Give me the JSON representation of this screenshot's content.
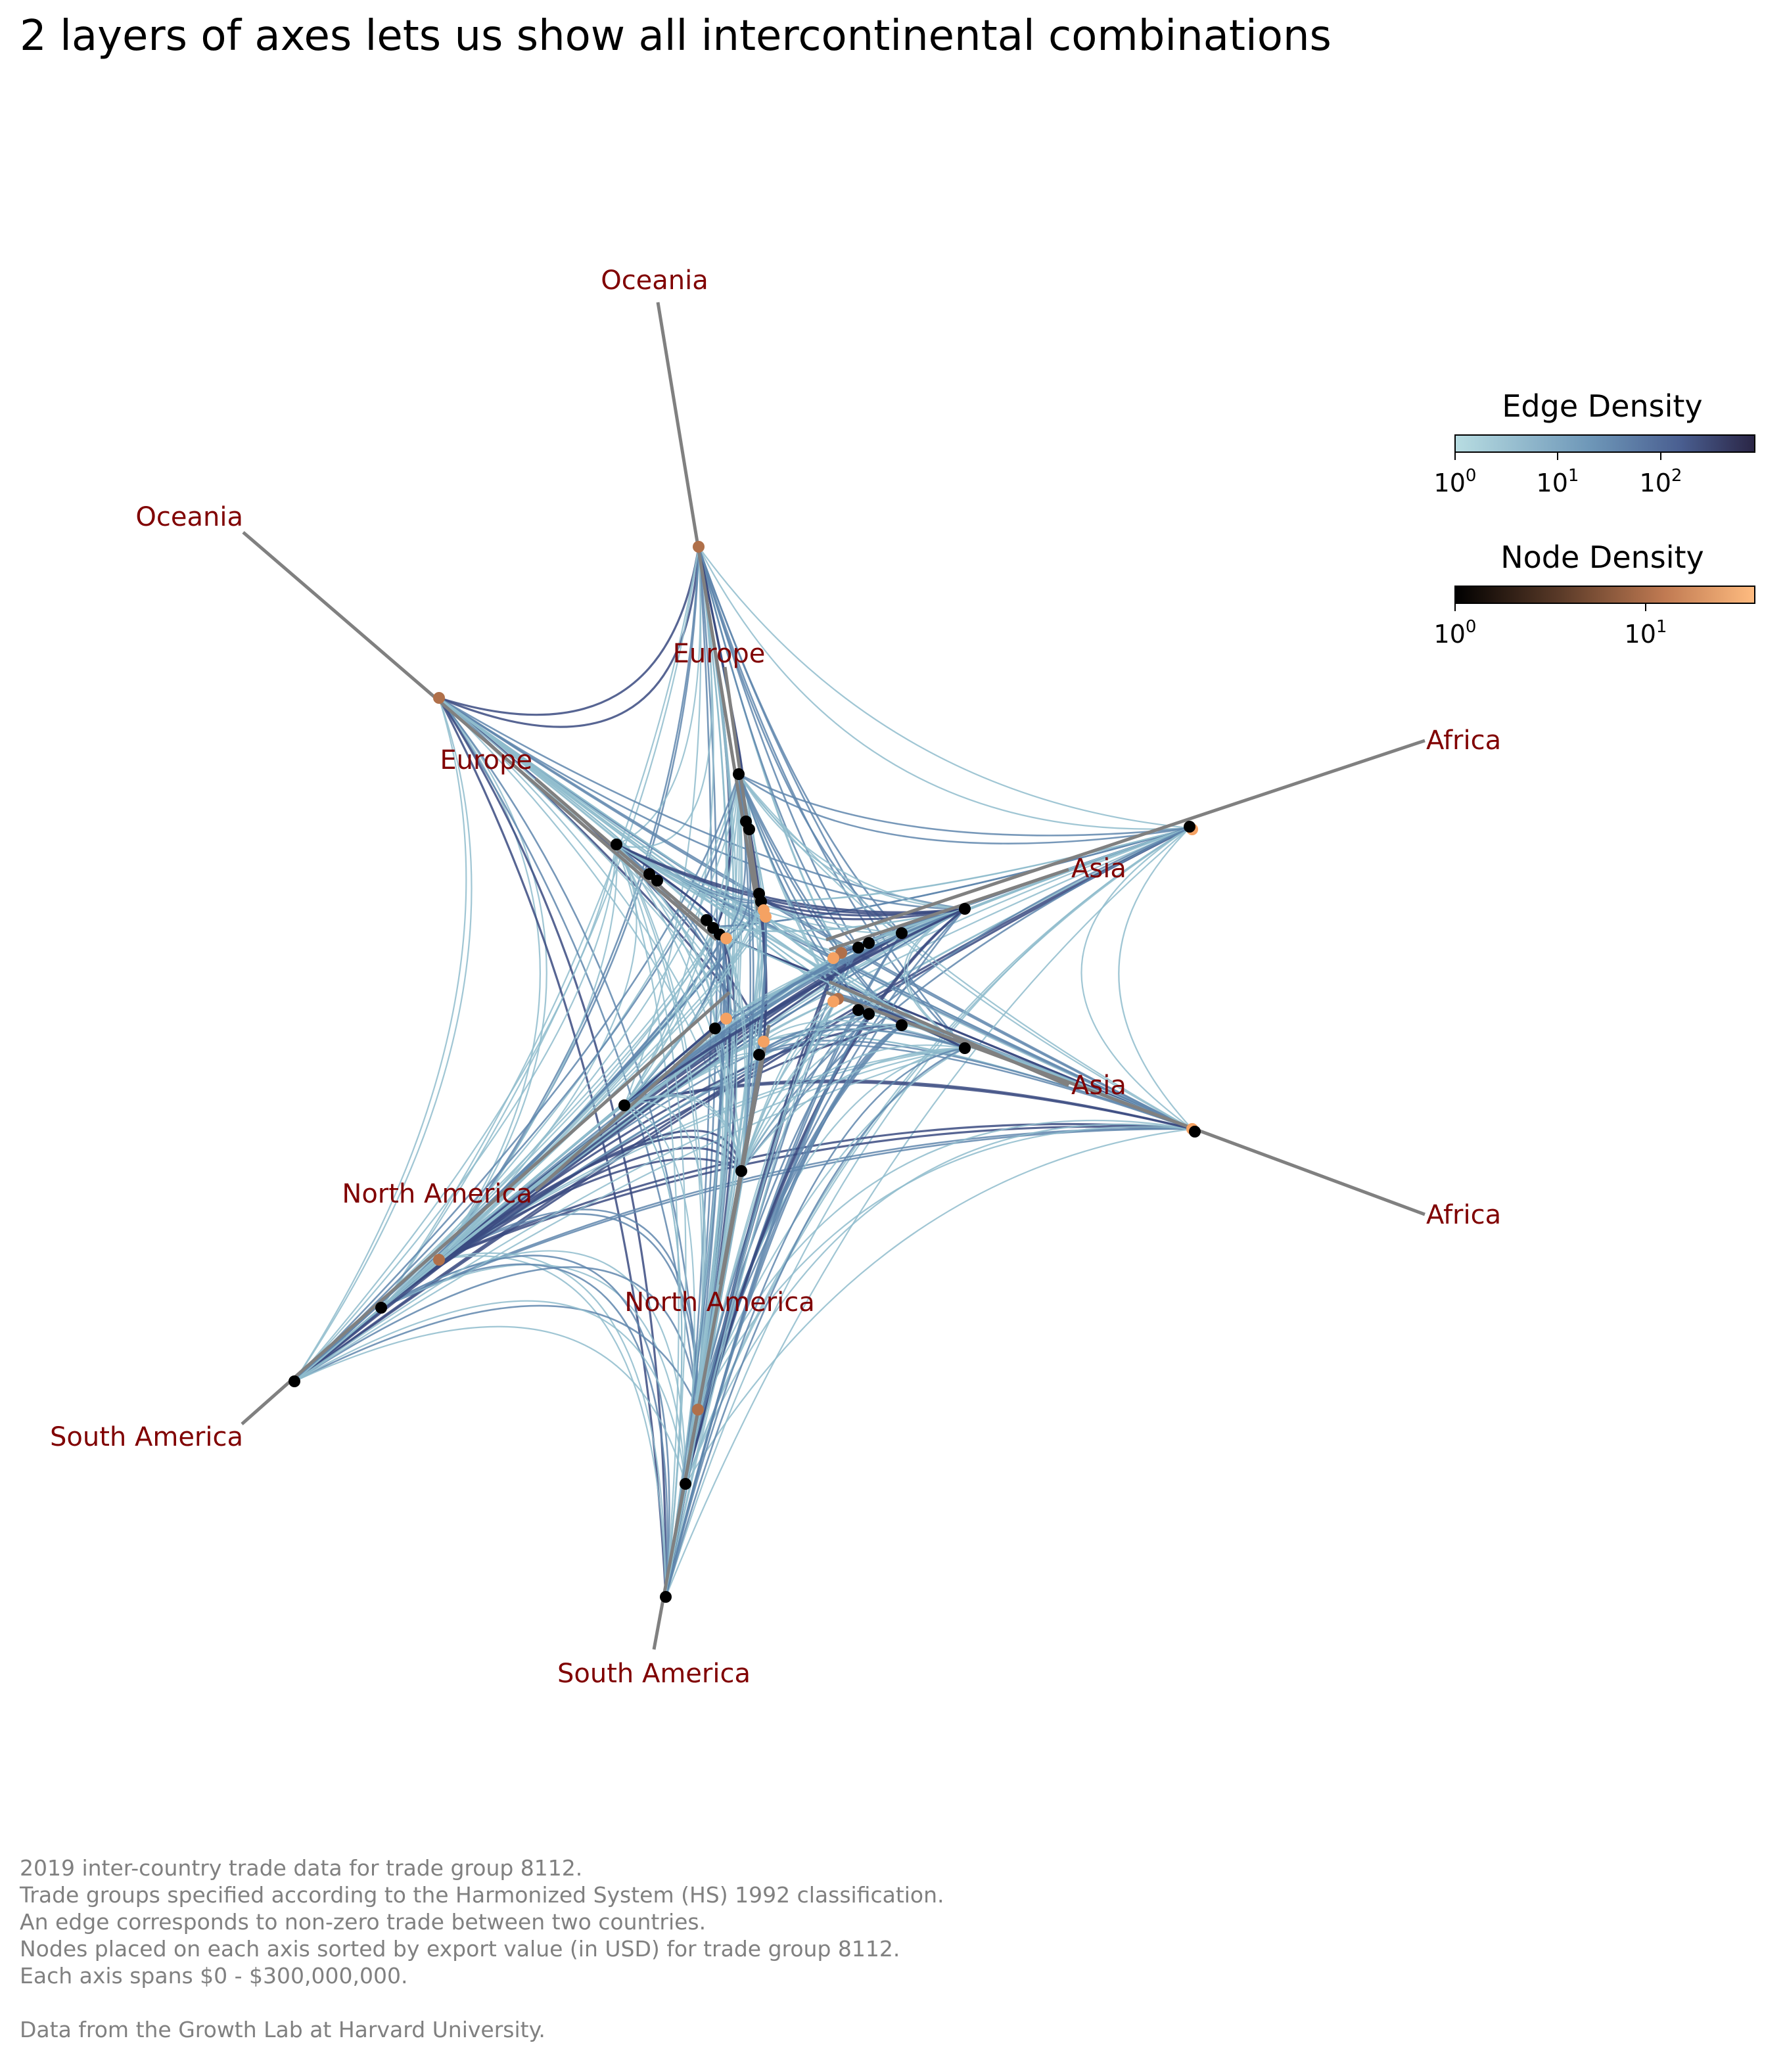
{
  "title": "2 layers of axes lets us show all intercontinental combinations",
  "chart_data": {
    "type": "hive-plot",
    "title": "2 layers of axes lets us show all intercontinental combinations",
    "groups": [
      "Oceania",
      "Europe",
      "Asia",
      "Africa",
      "South America",
      "North America"
    ],
    "axes": [
      {
        "outer_label": "Oceania",
        "inner_label": "Europe"
      },
      {
        "outer_label": "Africa",
        "inner_label": "Asia"
      },
      {
        "outer_label": "Africa",
        "inner_label": "Asia"
      },
      {
        "outer_label": "South America",
        "inner_label": "North America"
      },
      {
        "outer_label": "South America",
        "inner_label": "North America"
      },
      {
        "outer_label": "Oceania",
        "inner_label": "Europe"
      }
    ],
    "axis_range_usd": [
      0,
      300000000
    ],
    "trade_group": "8112",
    "year": 2019,
    "edge_density_colorbar": {
      "title": "Edge Density",
      "scale": "log",
      "ticks": [
        "10^0",
        "10^1",
        "10^2"
      ],
      "range": [
        1,
        600
      ],
      "colors": [
        "#b8dde2",
        "#6e97b8",
        "#4a5f91",
        "#2a2545"
      ]
    },
    "node_density_colorbar": {
      "title": "Node Density",
      "scale": "log",
      "ticks": [
        "10^0",
        "10^1"
      ],
      "range": [
        1,
        40
      ],
      "colors": [
        "#000000",
        "#5a3a28",
        "#c07a52",
        "#ffbc80"
      ]
    }
  },
  "colorbars": [
    {
      "title": "Edge Density",
      "ticks": [
        {
          "base": "10",
          "exp": "0"
        },
        {
          "base": "10",
          "exp": "1"
        },
        {
          "base": "10",
          "exp": "2"
        }
      ]
    },
    {
      "title": "Node Density",
      "ticks": [
        {
          "base": "10",
          "exp": "0"
        },
        {
          "base": "10",
          "exp": "1"
        }
      ]
    }
  ],
  "caption": [
    "2019 inter-country trade data for trade group 8112.",
    "Trade groups specified according to the Harmonized System (HS) 1992 classification.",
    "An edge corresponds to non-zero trade between two countries.",
    "Nodes placed on each axis sorted by export value (in USD) for trade group 8112.",
    "Each axis spans $0 - $300,000,000.",
    "",
    "Data from the Growth Lab at Harvard University."
  ],
  "colors": {
    "axis_line": "#808080",
    "axis_label": "#800000",
    "node_low": "#000000",
    "node_high": "#f5a263",
    "edge_light": "#8fbccc",
    "edge_mid": "#5f86ad",
    "edge_dark": "#3a4a80"
  }
}
